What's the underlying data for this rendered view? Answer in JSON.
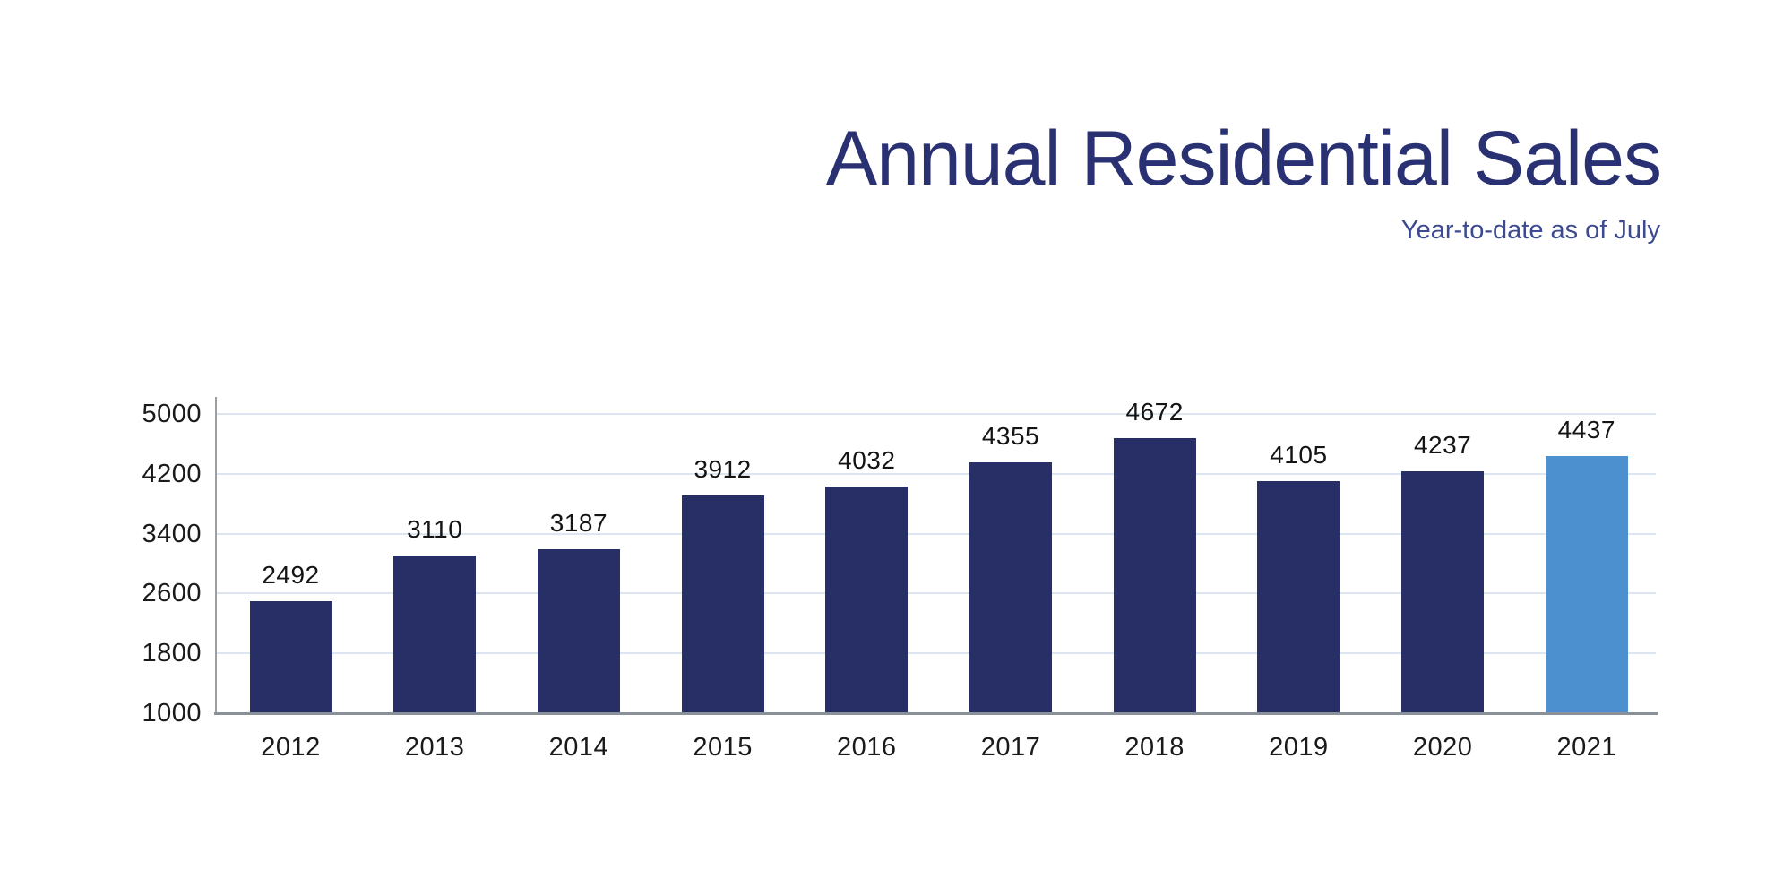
{
  "header": {
    "title": "Annual Residential Sales",
    "subtitle": "Year-to-date as of July",
    "title_color": "#2a3172",
    "subtitle_color": "#3d4a92"
  },
  "chart_data": {
    "type": "bar",
    "title": "Annual Residential Sales",
    "subtitle": "Year-to-date as of July",
    "categories": [
      "2012",
      "2013",
      "2014",
      "2015",
      "2016",
      "2017",
      "2018",
      "2019",
      "2020",
      "2021"
    ],
    "values": [
      2492,
      3110,
      3187,
      3912,
      4032,
      4355,
      4672,
      4105,
      4237,
      4437
    ],
    "value_labels_shown": true,
    "xlabel": "",
    "ylabel": "",
    "ylim": [
      1000,
      5000
    ],
    "yticks": [
      1000,
      1800,
      2600,
      3400,
      4200,
      5000
    ],
    "grid": true,
    "legend": "none",
    "bar_color": "#272f66",
    "highlight_color": "#4d90cf",
    "highlight_index": 9,
    "gridline_color": "#dce5f0",
    "axis_line_color": "#8a9097",
    "label_color": "#1a1a1a"
  }
}
